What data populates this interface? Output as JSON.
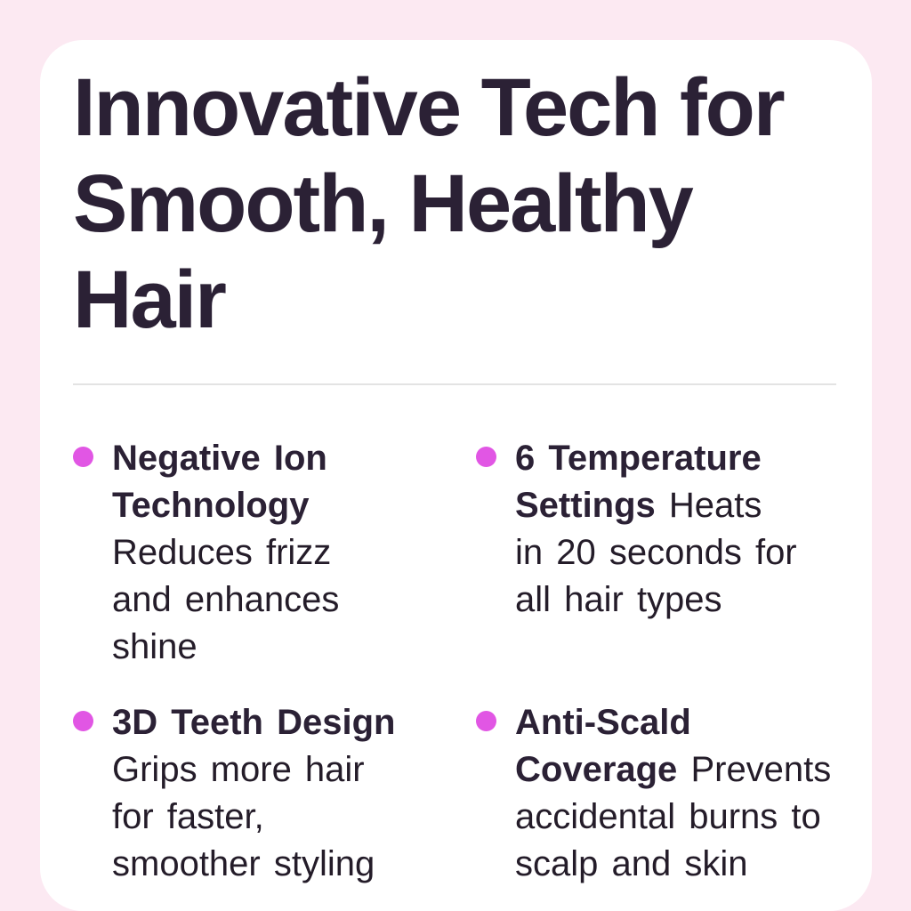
{
  "heading": {
    "title": "Innovative Tech for Smooth, Healthy Hair"
  },
  "features": {
    "items": [
      {
        "title": "Negative Ion Technology",
        "description": "Reduces frizz and enhances shine"
      },
      {
        "title": "6 Temperature Settings",
        "description": "Heats in 20 seconds for all hair types"
      },
      {
        "title": "3D Teeth Design",
        "description": "Grips more hair for faster, smoother styling"
      },
      {
        "title": "Anti-Scald Coverage",
        "description": "Prevents accidental burns to scalp and skin"
      }
    ]
  },
  "colors": {
    "page_background": "#fce9f2",
    "card_background": "#ffffff",
    "heading_text": "#2b2135",
    "body_text": "#241c29",
    "bullet_accent": "#e156e4",
    "divider": "#e3e3e3"
  }
}
